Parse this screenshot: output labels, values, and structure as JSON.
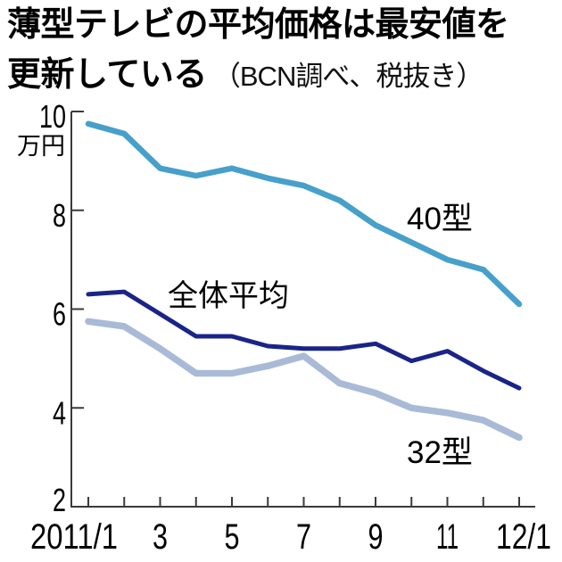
{
  "header": {
    "title_line1": "薄型テレビの平均価格は最安値を",
    "title_line2": "更新している",
    "subtitle": "（BCN調べ、税抜き）"
  },
  "chart_data": {
    "type": "line",
    "title": "薄型テレビの平均価格は最安値を更新している",
    "source_note": "（BCN調べ、税抜き）",
    "grid": false,
    "legend_position": "inline-labels",
    "x_axis": {
      "categories": [
        "2011/1",
        "2011/2",
        "2011/3",
        "2011/4",
        "2011/5",
        "2011/6",
        "2011/7",
        "2011/8",
        "2011/9",
        "2011/10",
        "2011/11",
        "2011/12",
        "2012/1"
      ],
      "tick_labels": [
        {
          "index": 0,
          "label": "2011/1"
        },
        {
          "index": 2,
          "label": "3"
        },
        {
          "index": 4,
          "label": "5"
        },
        {
          "index": 6,
          "label": "7"
        },
        {
          "index": 8,
          "label": "9"
        },
        {
          "index": 10,
          "label": "11"
        },
        {
          "index": 12,
          "label": "12/1"
        }
      ]
    },
    "y_axis": {
      "unit": "万円",
      "ticks": [
        10,
        8,
        6,
        4,
        2
      ],
      "min": 2,
      "max": 10
    },
    "series": [
      {
        "name": "40型",
        "color": "#46a0ca",
        "values": [
          9.75,
          9.55,
          8.85,
          8.7,
          8.85,
          8.65,
          8.5,
          8.2,
          7.7,
          7.35,
          7.0,
          6.8,
          6.1
        ]
      },
      {
        "name": "全体平均",
        "color": "#1a2488",
        "values": [
          6.3,
          6.35,
          5.9,
          5.45,
          5.45,
          5.25,
          5.2,
          5.2,
          5.3,
          4.95,
          5.15,
          4.75,
          4.4
        ]
      },
      {
        "name": "32型",
        "color": "#a9bad7",
        "values": [
          5.75,
          5.65,
          5.2,
          4.7,
          4.7,
          4.85,
          5.05,
          4.5,
          4.3,
          4.0,
          3.9,
          3.75,
          3.4
        ]
      }
    ],
    "axis_color": "#3a3a3a",
    "text_color": "#000000"
  }
}
